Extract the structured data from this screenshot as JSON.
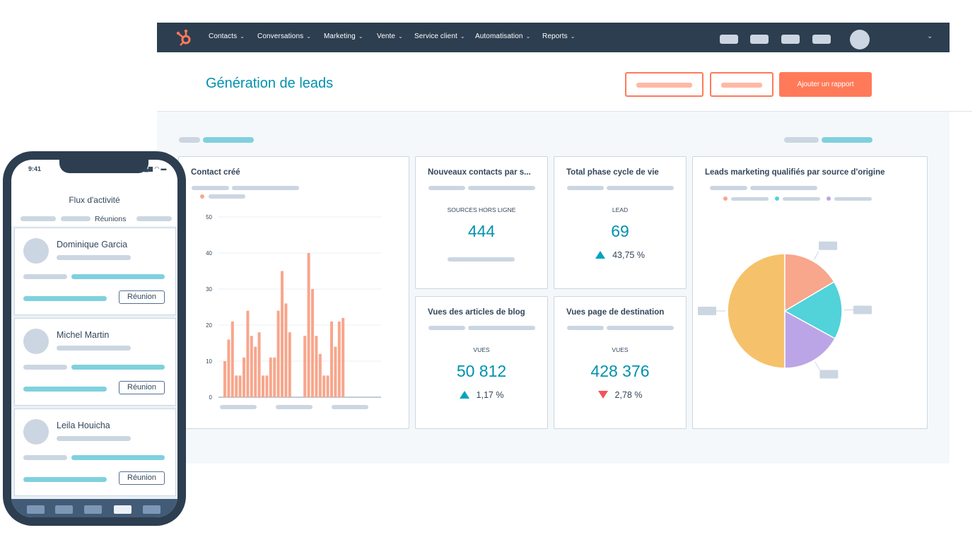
{
  "colors": {
    "navbar": "#2d3e50",
    "accent_orange": "#ff7a59",
    "teal": "#00a4bd",
    "title_blue": "#0091ae",
    "bar_salmon": "#f8a68c",
    "decline_red": "#f2545b"
  },
  "nav": {
    "logo_icon": "hubspot-sprocket-icon",
    "items": [
      "Contacts",
      "Conversations",
      "Marketing",
      "Vente",
      "Service client",
      "Automatisation",
      "Reports"
    ]
  },
  "header": {
    "title": "Génération de leads",
    "add_report_label": "Ajouter un rapport"
  },
  "cards": {
    "contacts_created": {
      "title": "Contact créé"
    },
    "new_contacts": {
      "title": "Nouveaux contacts par s...",
      "label": "SOURCES HORS LIGNE",
      "value": "444"
    },
    "lifecycle": {
      "title": "Total phase cycle de vie",
      "label": "LEAD",
      "value": "69",
      "change": "43,75 %",
      "trend": "up"
    },
    "blog_views": {
      "title": "Vues des articles de blog",
      "label": "VUES",
      "value": "50 812",
      "change": "1,17 %",
      "trend": "up"
    },
    "landing_views": {
      "title": "Vues page de destination",
      "label": "VUES",
      "value": "428 376",
      "change": "2,78 %",
      "trend": "down"
    },
    "mql_source": {
      "title": "Leads marketing qualifiés par source d'origine"
    }
  },
  "chart_data": [
    {
      "type": "bar",
      "title": "Contact créé",
      "ylim": [
        0,
        50
      ],
      "yticks": [
        "0",
        "10",
        "20",
        "30",
        "40",
        "50"
      ],
      "grid": true,
      "values": [
        10,
        16,
        21,
        6,
        6,
        11,
        24,
        17,
        14,
        18,
        6,
        6,
        11,
        11,
        24,
        35,
        26,
        18,
        17,
        40,
        30,
        17,
        12,
        6,
        6,
        21,
        14,
        21,
        22
      ],
      "gaps_after_index": [
        17
      ]
    },
    {
      "type": "pie",
      "title": "Leads marketing qualifiés par source d'origine",
      "values": [
        50,
        16.5,
        16.5,
        17
      ],
      "colors": [
        "#f5c26b",
        "#f8a68c",
        "#51d3d9",
        "#bca5e6"
      ],
      "legend": "top"
    }
  ],
  "phone": {
    "time": "9:41",
    "status": "▂▄▆ ◠ ▬",
    "feed_title": "Flux d'activité",
    "active_tab": "Réunions",
    "contacts": [
      {
        "name": "Dominique Garcia",
        "button": "Réunion"
      },
      {
        "name": "Michel Martin",
        "button": "Réunion"
      },
      {
        "name": "Leila Houicha",
        "button": "Réunion"
      }
    ]
  }
}
